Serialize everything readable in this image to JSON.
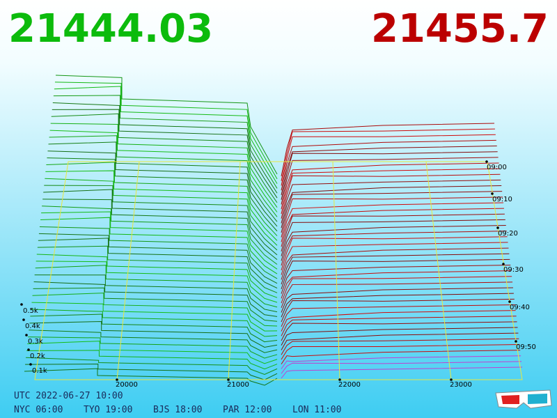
{
  "bid_price": "21444.03",
  "ask_price": "21455.7",
  "price_axis": [
    "20000",
    "21000",
    "22000",
    "23000"
  ],
  "volume_axis": [
    "0.1k",
    "0.2k",
    "0.3k",
    "0.4k",
    "0.5k"
  ],
  "time_axis": [
    "09:00",
    "09:10",
    "09:20",
    "09:30",
    "09:40",
    "09:50"
  ],
  "footer": {
    "utc": "UTC 2022-06-27 10:00",
    "cities": [
      "NYC 06:00",
      "TYO 19:00",
      "BJS 18:00",
      "PAR 12:00",
      "LON 11:00"
    ]
  }
}
